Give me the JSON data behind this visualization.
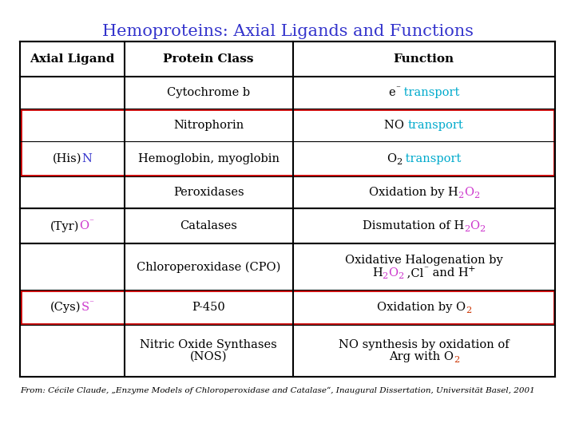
{
  "title": "Hemoproteins: Axial Ligands and Functions",
  "title_color": "#3333cc",
  "title_fontsize": 15,
  "col_headers": [
    "Axial Ligand",
    "Protein Class",
    "Function"
  ],
  "footer": "From: Cécile Claude, „Enzyme Models of Chloroperoxidase and Catalase“, Inaugural Dissertation, Universität Basel, 2001",
  "bg_color": "#ffffff",
  "cyan": "#00aacc",
  "magenta": "#cc33cc",
  "orange": "#cc3300",
  "blue": "#3333cc",
  "red": "#cc0000"
}
